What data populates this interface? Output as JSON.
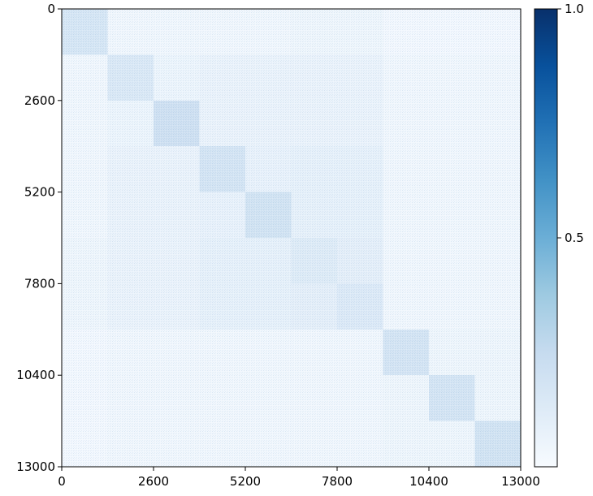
{
  "chart_data": {
    "type": "heatmap",
    "title": "",
    "xlabel": "",
    "ylabel": "",
    "xlim": [
      0,
      13000
    ],
    "ylim": [
      0,
      13000
    ],
    "y_axis_inverted": true,
    "x_ticks": [
      "0",
      "2600",
      "5200",
      "7800",
      "10400",
      "13000"
    ],
    "y_ticks": [
      "0",
      "2600",
      "5200",
      "7800",
      "10400",
      "13000"
    ],
    "colormap": "Blues",
    "colorbar": {
      "min": 0,
      "max": 1.0,
      "ticks": [
        "0.5",
        "1.0"
      ],
      "tick_values": [
        0.5,
        1.0
      ]
    },
    "block_boundaries": [
      0,
      1300,
      2600,
      3900,
      5200,
      6500,
      7800,
      9100,
      10400,
      11700,
      13000
    ],
    "block_values": [
      [
        0.16,
        0.03,
        0.03,
        0.03,
        0.03,
        0.04,
        0.04,
        0.02,
        0.02,
        0.02
      ],
      [
        0.03,
        0.14,
        0.05,
        0.06,
        0.06,
        0.06,
        0.06,
        0.03,
        0.03,
        0.03
      ],
      [
        0.03,
        0.05,
        0.2,
        0.06,
        0.06,
        0.06,
        0.06,
        0.03,
        0.03,
        0.03
      ],
      [
        0.03,
        0.06,
        0.06,
        0.17,
        0.07,
        0.08,
        0.08,
        0.03,
        0.03,
        0.03
      ],
      [
        0.03,
        0.06,
        0.06,
        0.07,
        0.18,
        0.08,
        0.08,
        0.03,
        0.03,
        0.03
      ],
      [
        0.04,
        0.06,
        0.06,
        0.08,
        0.08,
        0.12,
        0.09,
        0.03,
        0.03,
        0.03
      ],
      [
        0.04,
        0.06,
        0.06,
        0.08,
        0.08,
        0.09,
        0.13,
        0.03,
        0.03,
        0.03
      ],
      [
        0.02,
        0.03,
        0.03,
        0.03,
        0.03,
        0.03,
        0.03,
        0.17,
        0.04,
        0.04
      ],
      [
        0.02,
        0.03,
        0.03,
        0.03,
        0.03,
        0.03,
        0.03,
        0.04,
        0.17,
        0.04
      ],
      [
        0.02,
        0.03,
        0.03,
        0.03,
        0.03,
        0.03,
        0.03,
        0.04,
        0.04,
        0.18
      ]
    ]
  }
}
